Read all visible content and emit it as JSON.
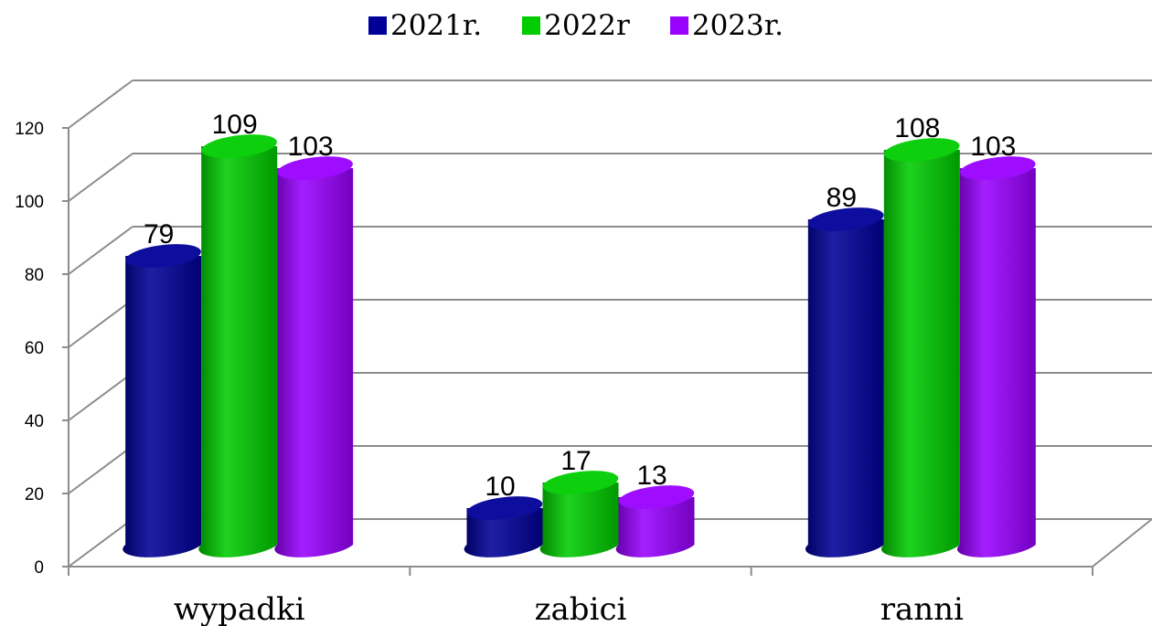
{
  "chart_data": {
    "type": "bar",
    "categories": [
      "wypadki",
      "zabici",
      "ranni"
    ],
    "series": [
      {
        "name": "2021r.",
        "values": [
          79,
          10,
          89
        ],
        "color": "#000099"
      },
      {
        "name": "2022r",
        "values": [
          109,
          17,
          108
        ],
        "color": "#00cc00"
      },
      {
        "name": "2023r.",
        "values": [
          103,
          13,
          103
        ],
        "color": "#9900ff"
      }
    ],
    "ylim": [
      0,
      120
    ],
    "yticks": [
      0,
      20,
      40,
      60,
      80,
      100,
      120
    ],
    "grid": true,
    "legend_position": "top",
    "style": "3d-cylinder"
  }
}
